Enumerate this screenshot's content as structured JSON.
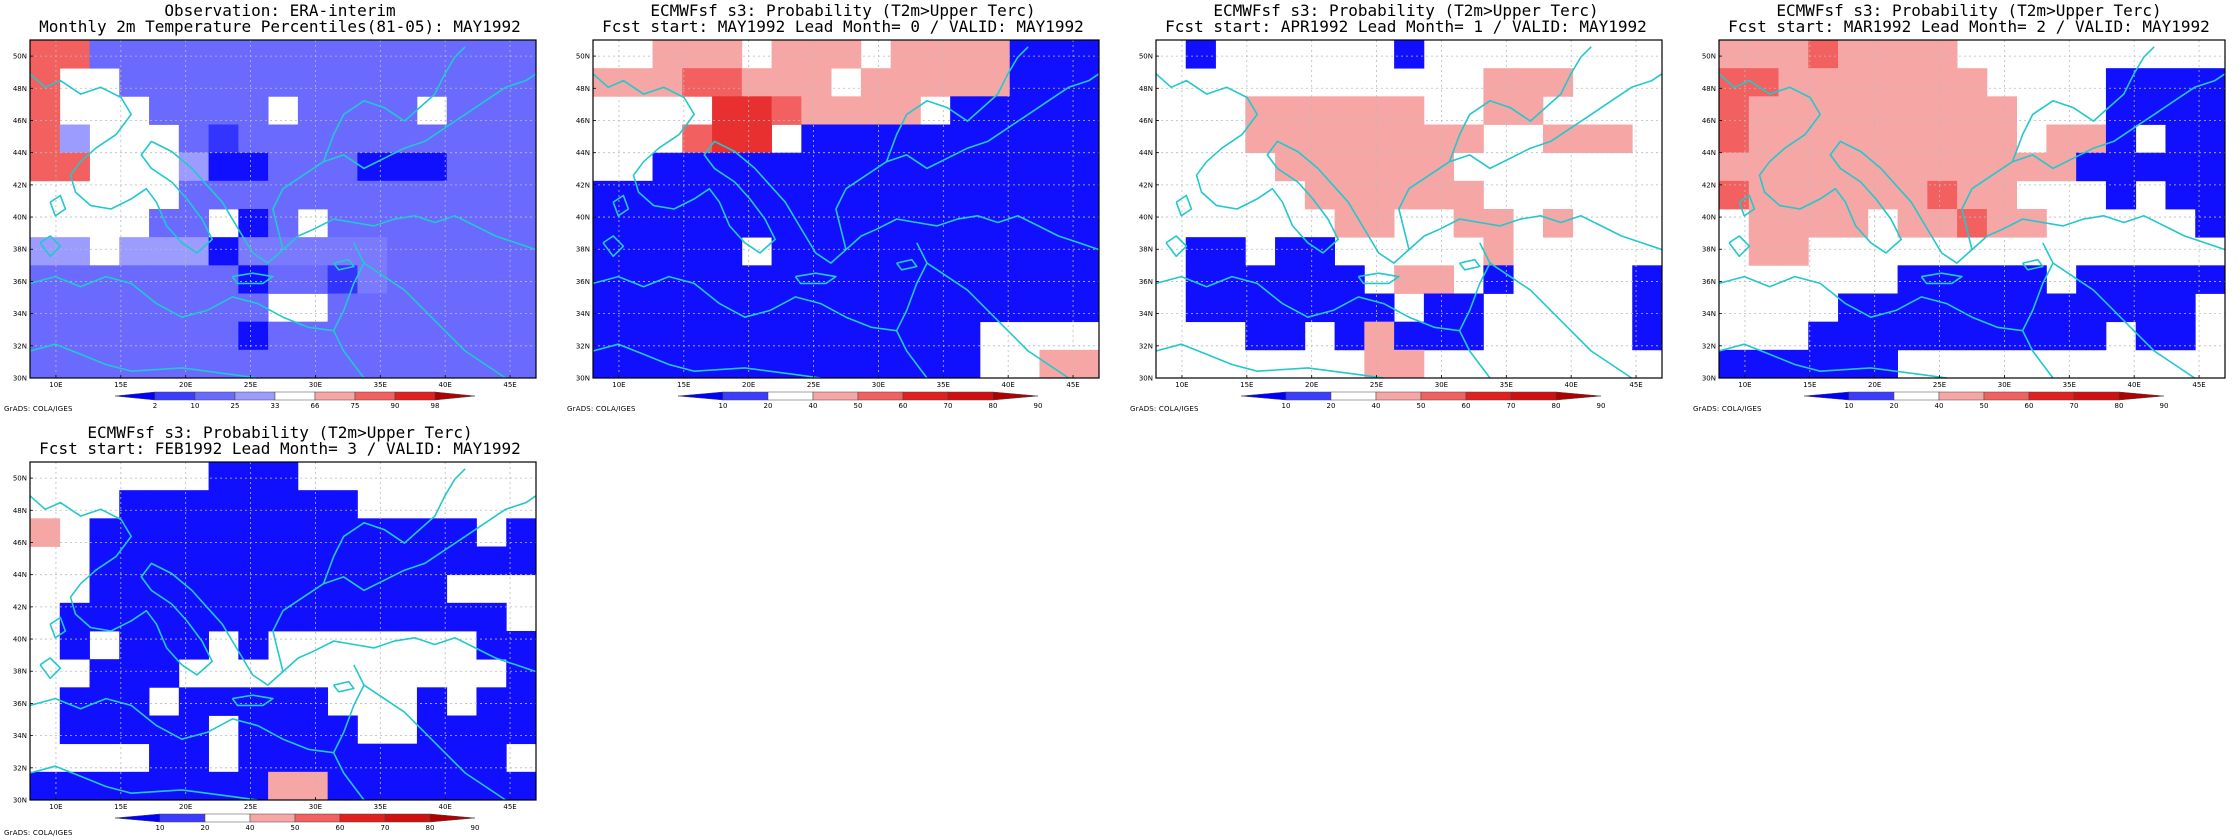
{
  "figure": {
    "credit": "GrADS: COLA/IGES"
  },
  "map": {
    "lat_ticks": [
      "30N",
      "32N",
      "34N",
      "36N",
      "38N",
      "40N",
      "42N",
      "44N",
      "46N",
      "48N",
      "50N"
    ],
    "lon_ticks": [
      "10E",
      "15E",
      "20E",
      "25E",
      "30E",
      "35E",
      "40E",
      "45E"
    ],
    "lon_range": [
      8,
      47
    ],
    "lat_range": [
      30,
      51
    ],
    "grid_lines": true,
    "coastline_color": "#22c8cc"
  },
  "panels": [
    {
      "title_line1": "Observation: ERA-interim",
      "title_line2": "Monthly 2m Temperature Percentiles(81-05): MAY1992",
      "legend_labels": [
        "2",
        "10",
        "25",
        "33",
        "66",
        "75",
        "90",
        "98"
      ],
      "legend_colors": [
        "#0000ff",
        "#3c3cff",
        "#6a6aff",
        "#9c9cff",
        "#ffffff",
        "#f7a6a6",
        "#f26060",
        "#e22020",
        "#b00000"
      ],
      "grid": [
        "DD88888888888888",
        "D00018888888888",
        "D00018888FF88888",
        "DD00068888888888",
        "D00000018888888",
        "D0000888818228888",
        "00000008000888888",
        "76776627777788888",
        "88888887881788888",
        "88888888828888888",
        "88888887888888888"
      ]
    },
    {
      "title_line1": "ECMWFsf s3: Probability (T2m>Upper Terc)",
      "title_line2": "Fcst start: MAY1992  Lead Month= 0 / VALID: MAY1992",
      "legend_labels": [
        "10",
        "20",
        "40",
        "50",
        "60",
        "70",
        "80",
        "90"
      ],
      "legend_colors": [
        "#0000ff",
        "#3c3cff",
        "#ffffff",
        "#f7a6a6",
        "#f26060",
        "#e22020",
        "#d01010",
        "#b00000"
      ],
      "grid": []
    },
    {
      "title_line1": "ECMWFsf s3: Probability (T2m>Upper Terc)",
      "title_line2": "Fcst start: APR1992  Lead Month= 1 / VALID: MAY1992",
      "legend_labels": [
        "10",
        "20",
        "40",
        "50",
        "60",
        "70",
        "80",
        "90"
      ],
      "legend_colors": [
        "#0000ff",
        "#3c3cff",
        "#ffffff",
        "#f7a6a6",
        "#f26060",
        "#e22020",
        "#d01010",
        "#b00000"
      ],
      "grid": []
    },
    {
      "title_line1": "ECMWFsf s3: Probability (T2m>Upper Terc)",
      "title_line2": "Fcst start: MAR1992  Lead Month= 2 / VALID: MAY1992",
      "legend_labels": [
        "10",
        "20",
        "40",
        "50",
        "60",
        "70",
        "80",
        "90"
      ],
      "legend_colors": [
        "#0000ff",
        "#3c3cff",
        "#ffffff",
        "#f7a6a6",
        "#f26060",
        "#e22020",
        "#d01010",
        "#b00000"
      ],
      "grid": []
    },
    {
      "title_line1": "ECMWFsf s3: Probability (T2m>Upper Terc)",
      "title_line2": "Fcst start: FEB1992  Lead Month= 3 / VALID: MAY1992",
      "legend_labels": [
        "10",
        "20",
        "40",
        "50",
        "60",
        "70",
        "80",
        "90"
      ],
      "legend_colors": [
        "#0000ff",
        "#3c3cff",
        "#ffffff",
        "#f7a6a6",
        "#f26060",
        "#e22020",
        "#d01010",
        "#b00000"
      ],
      "grid": []
    }
  ]
}
